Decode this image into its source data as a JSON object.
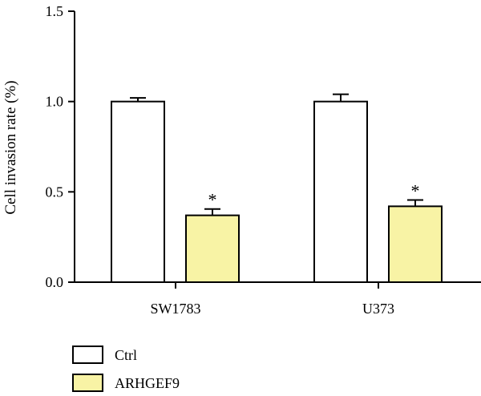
{
  "chart_data": {
    "type": "bar",
    "title": "",
    "xlabel": "",
    "ylabel": "Cell invasion rate (%)",
    "ylim": [
      0,
      1.5
    ],
    "yticks": [
      "0.0",
      "0.5",
      "1.0",
      "1.5"
    ],
    "categories": [
      "SW1783",
      "U373"
    ],
    "series": [
      {
        "name": "Ctrl",
        "color": "#ffffff",
        "values": [
          1.0,
          1.0
        ],
        "errors": [
          0.02,
          0.04
        ],
        "annotations": [
          "",
          ""
        ]
      },
      {
        "name": "ARHGEF9",
        "color": "#f8f3a5",
        "values": [
          0.37,
          0.42
        ],
        "errors": [
          0.035,
          0.035
        ],
        "annotations": [
          "*",
          "*"
        ]
      }
    ],
    "grid": false,
    "legend": "bottom-left"
  }
}
